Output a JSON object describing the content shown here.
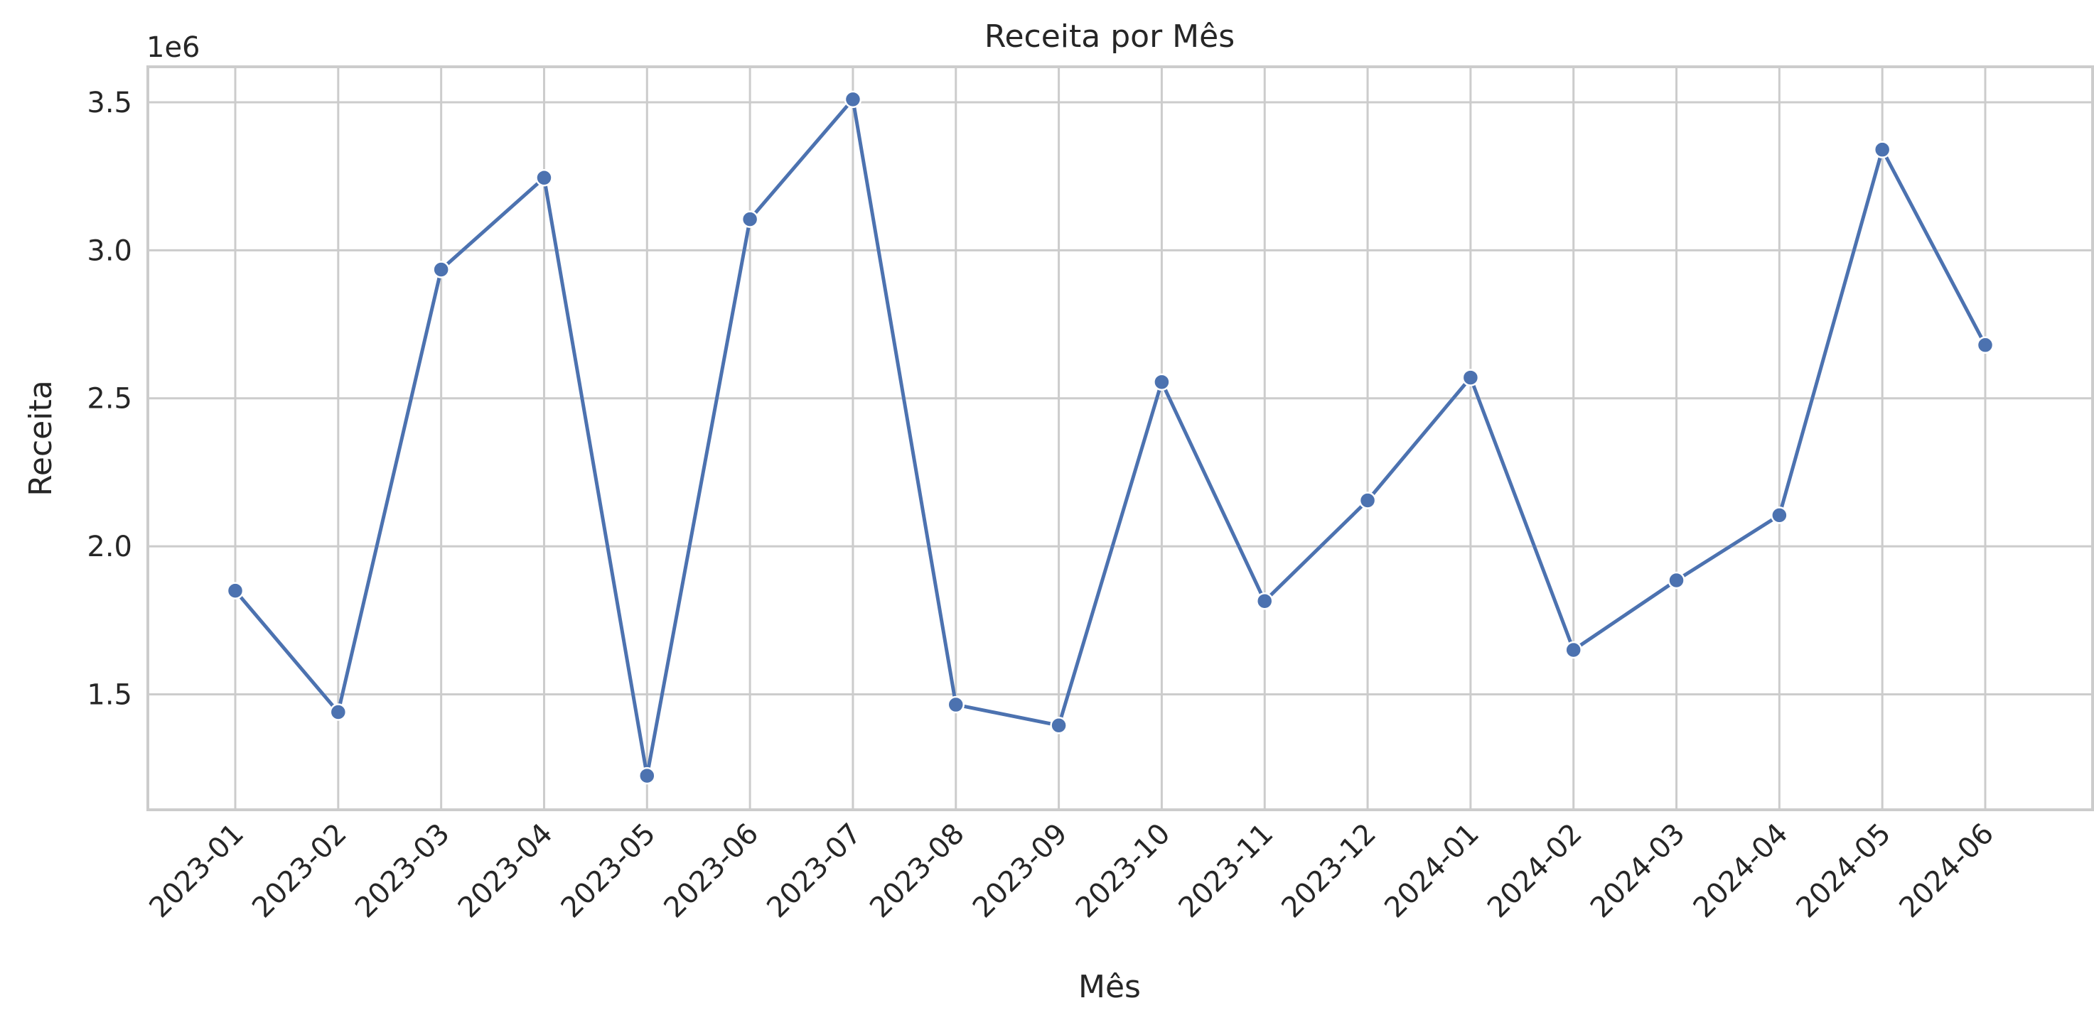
{
  "chart_data": {
    "type": "line",
    "title": "Receita por Mês",
    "xlabel": "Mês",
    "ylabel": "Receita",
    "y_offset_label": "1e6",
    "categories": [
      "2023-01",
      "2023-02",
      "2023-03",
      "2023-04",
      "2023-05",
      "2023-06",
      "2023-07",
      "2023-08",
      "2023-09",
      "2023-10",
      "2023-11",
      "2023-12",
      "2024-01",
      "2024-02",
      "2024-03",
      "2024-04",
      "2024-05",
      "2024-06"
    ],
    "series": [
      {
        "values": [
          1850000,
          1440000,
          2935000,
          3245000,
          1225000,
          3105000,
          3510000,
          1465000,
          1395000,
          2555000,
          1815000,
          2155000,
          2570000,
          1650000,
          1885000,
          2105000,
          3340000,
          2680000
        ],
        "color": "#4c72b0"
      }
    ],
    "ylim": [
      1110000,
      3620000
    ],
    "yticks": [
      1500000,
      2000000,
      2500000,
      3000000,
      3500000
    ],
    "ytick_labels": [
      "1.5",
      "2.0",
      "2.5",
      "3.0",
      "3.5"
    ],
    "grid": true,
    "marker": "circle",
    "x_tick_rotation": 45
  }
}
